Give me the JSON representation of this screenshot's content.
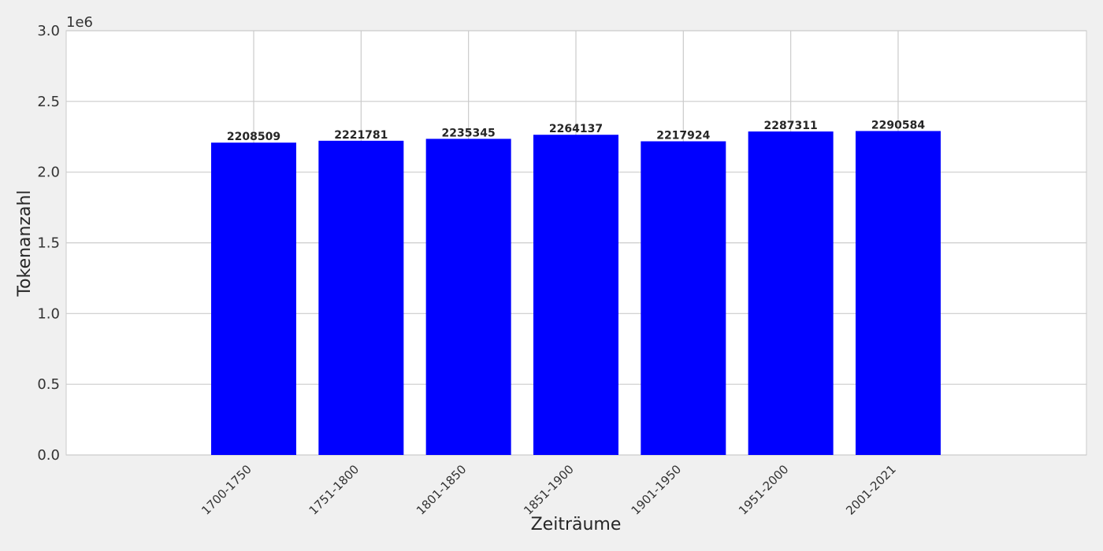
{
  "chart_data": {
    "type": "bar",
    "categories": [
      "1700-1750",
      "1751-1800",
      "1801-1850",
      "1851-1900",
      "1901-1950",
      "1951-2000",
      "2001-2021"
    ],
    "values": [
      2208509,
      2221781,
      2235345,
      2264137,
      2217924,
      2287311,
      2290584
    ],
    "data_labels": [
      "2208509",
      "2221781",
      "2235345",
      "2264137",
      "2217924",
      "2287311",
      "2290584"
    ],
    "title": "",
    "xlabel": "Zeiträume",
    "ylabel": "Tokenanzahl",
    "ylim": [
      0,
      3000000
    ],
    "y_ticks": [
      0,
      500000,
      1000000,
      1500000,
      2000000,
      2500000,
      3000000
    ],
    "y_tick_labels": [
      "0.0",
      "0.5",
      "1.0",
      "1.5",
      "2.0",
      "2.5",
      "3.0"
    ],
    "y_offset_label": "1e6",
    "grid": true,
    "legend": "none",
    "colors": {
      "bar": "#0000ff",
      "background": "#f0f0f0",
      "plot_area": "#ffffff",
      "grid": "#cbcbcb"
    }
  }
}
